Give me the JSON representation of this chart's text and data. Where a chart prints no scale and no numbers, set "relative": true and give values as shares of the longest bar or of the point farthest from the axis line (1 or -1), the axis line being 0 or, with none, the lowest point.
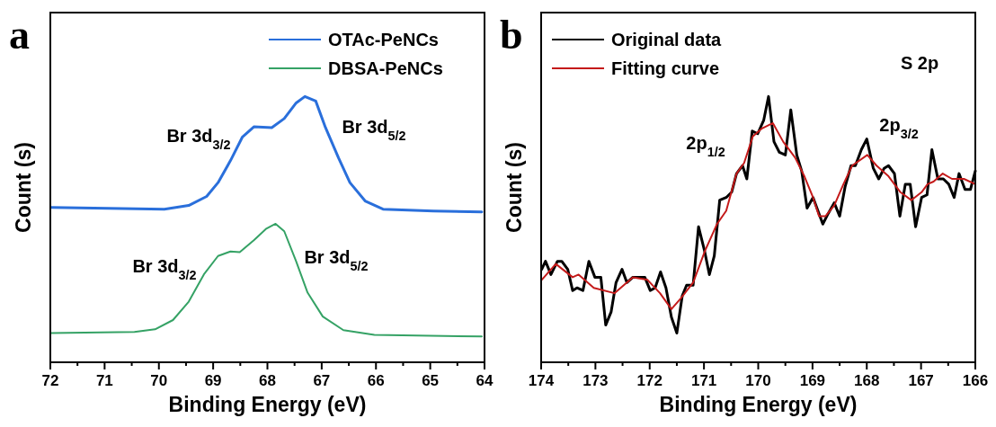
{
  "chart_data": [
    {
      "type": "line",
      "title": "a",
      "xlabel": "Binding Energy (eV)",
      "ylabel": "Count (s)",
      "relative": true,
      "legend": "top right",
      "xlim": [
        72,
        64
      ],
      "xticks": [
        72,
        {
          "value": 71.5,
          "label": null
        },
        71,
        {
          "value": 70.5,
          "label": null
        },
        70,
        {
          "value": 69.5,
          "label": null
        },
        69,
        {
          "value": 68.5,
          "label": null
        },
        68,
        {
          "value": 67.5,
          "label": null
        },
        67,
        {
          "value": 66.5,
          "label": null
        },
        66,
        {
          "value": 65.5,
          "label": null
        },
        65,
        {
          "value": 64.5,
          "label": null
        },
        64
      ],
      "series": [
        {
          "name": "OTAc-PeNCs",
          "color": "#2a6fdb",
          "x": [
            71.98,
            69.9,
            69.45,
            69.12,
            68.91,
            68.68,
            68.46,
            68.25,
            67.92,
            67.69,
            67.47,
            67.31,
            67.11,
            66.93,
            66.69,
            66.48,
            66.2,
            65.87,
            64.94,
            64.05
          ],
          "values": [
            0.583,
            0.576,
            0.59,
            0.624,
            0.676,
            0.759,
            0.848,
            0.886,
            0.883,
            0.917,
            0.976,
            1.0,
            0.983,
            0.883,
            0.769,
            0.676,
            0.607,
            0.576,
            0.569,
            0.566
          ]
        },
        {
          "name": "DBSA-PeNCs",
          "color": "#35a265",
          "x": [
            71.98,
            70.45,
            70.07,
            69.74,
            69.45,
            69.17,
            68.91,
            68.68,
            68.51,
            68.25,
            68.02,
            67.85,
            67.69,
            67.47,
            67.26,
            66.98,
            66.6,
            66.03,
            64.05
          ],
          "values": [
            0.11,
            0.114,
            0.124,
            0.159,
            0.228,
            0.331,
            0.4,
            0.417,
            0.414,
            0.459,
            0.503,
            0.521,
            0.493,
            0.379,
            0.262,
            0.172,
            0.121,
            0.103,
            0.097
          ]
        }
      ],
      "annotations": [
        "Br 3d$_{3/2}$",
        "Br 3d$_{5/2}$",
        "Br 3d$_{3/2}$",
        "Br 3d$_{5/2}$"
      ]
    },
    {
      "type": "line",
      "title": "b",
      "xlabel": "Binding Energy (eV)",
      "ylabel": "Count (s)",
      "relative": true,
      "legend": "top left",
      "xlim": [
        174,
        166
      ],
      "xticks": [
        174,
        {
          "value": 173.5,
          "label": null
        },
        173,
        {
          "value": 172.5,
          "label": null
        },
        172,
        {
          "value": 171.5,
          "label": null
        },
        171,
        {
          "value": 170.5,
          "label": null
        },
        170,
        {
          "value": 169.5,
          "label": null
        },
        169,
        {
          "value": 168.5,
          "label": null
        },
        168,
        {
          "value": 167.5,
          "label": null
        },
        167,
        {
          "value": 166.5,
          "label": null
        },
        166
      ],
      "series": [
        {
          "name": "Original data",
          "color": "#000000",
          "x": [
            173.99,
            173.92,
            173.82,
            173.7,
            173.62,
            173.51,
            173.42,
            173.34,
            173.23,
            173.12,
            173.01,
            172.9,
            172.81,
            172.71,
            172.62,
            172.51,
            172.42,
            172.31,
            172.2,
            172.09,
            171.99,
            171.9,
            171.8,
            171.7,
            171.6,
            171.5,
            171.4,
            171.32,
            171.2,
            171.1,
            170.99,
            170.9,
            170.81,
            170.71,
            170.59,
            170.49,
            170.4,
            170.29,
            170.21,
            170.11,
            170.01,
            169.9,
            169.81,
            169.71,
            169.61,
            169.5,
            169.4,
            169.29,
            169.2,
            169.1,
            168.99,
            168.81,
            168.71,
            168.6,
            168.5,
            168.4,
            168.29,
            168.21,
            168.1,
            168.0,
            167.88,
            167.78,
            167.68,
            167.6,
            167.49,
            167.39,
            167.29,
            167.2,
            167.1,
            166.99,
            166.89,
            166.8,
            166.69,
            166.59,
            166.49,
            166.39,
            166.3,
            166.19,
            166.09,
            166.0
          ],
          "values": [
            0.35,
            0.38,
            0.33,
            0.38,
            0.38,
            0.35,
            0.27,
            0.28,
            0.27,
            0.38,
            0.32,
            0.32,
            0.14,
            0.19,
            0.3,
            0.35,
            0.3,
            0.32,
            0.32,
            0.32,
            0.27,
            0.28,
            0.34,
            0.28,
            0.17,
            0.11,
            0.25,
            0.29,
            0.29,
            0.51,
            0.42,
            0.33,
            0.4,
            0.61,
            0.62,
            0.64,
            0.71,
            0.74,
            0.69,
            0.87,
            0.86,
            0.91,
            1.0,
            0.83,
            0.79,
            0.78,
            0.95,
            0.78,
            0.72,
            0.58,
            0.62,
            0.52,
            0.56,
            0.6,
            0.55,
            0.66,
            0.74,
            0.74,
            0.8,
            0.84,
            0.73,
            0.69,
            0.73,
            0.74,
            0.71,
            0.55,
            0.67,
            0.67,
            0.51,
            0.62,
            0.63,
            0.8,
            0.69,
            0.69,
            0.67,
            0.62,
            0.71,
            0.65,
            0.65,
            0.72
          ]
        },
        {
          "name": "Fitting curve",
          "color": "#c41a1a",
          "x": [
            173.99,
            173.73,
            173.42,
            173.31,
            173.03,
            172.65,
            172.31,
            172.04,
            171.81,
            171.6,
            171.43,
            171.2,
            170.98,
            170.76,
            170.59,
            170.4,
            170.26,
            170.1,
            169.93,
            169.73,
            169.54,
            169.32,
            169.15,
            168.99,
            168.88,
            168.76,
            168.6,
            168.43,
            168.27,
            167.99,
            167.82,
            167.6,
            167.38,
            167.18,
            166.99,
            166.88,
            166.77,
            166.6,
            166.43,
            166.21,
            166.0
          ],
          "values": [
            0.31,
            0.37,
            0.32,
            0.33,
            0.28,
            0.26,
            0.32,
            0.31,
            0.26,
            0.2,
            0.24,
            0.3,
            0.42,
            0.52,
            0.57,
            0.71,
            0.75,
            0.85,
            0.88,
            0.9,
            0.83,
            0.77,
            0.7,
            0.62,
            0.55,
            0.55,
            0.59,
            0.67,
            0.74,
            0.78,
            0.74,
            0.7,
            0.64,
            0.61,
            0.64,
            0.67,
            0.68,
            0.71,
            0.69,
            0.69,
            0.67
          ]
        }
      ],
      "annotations": [
        "S 2p",
        "2p$_{1/2}$",
        "2p$_{3/2}$"
      ]
    }
  ]
}
